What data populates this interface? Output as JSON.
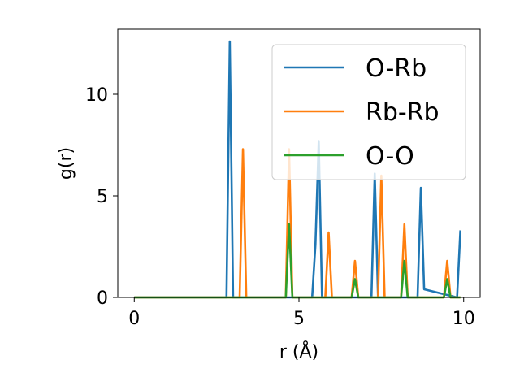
{
  "chart_data": {
    "type": "line",
    "title": "",
    "xlabel": "r (Å)",
    "ylabel": "g(r)",
    "xlim": [
      -0.5,
      10.5
    ],
    "ylim": [
      0,
      13.2
    ],
    "xticks": [
      0,
      5,
      10
    ],
    "yticks": [
      0,
      5,
      10
    ],
    "xtick_labels": [
      "0",
      "5",
      "10"
    ],
    "ytick_labels": [
      "0",
      "5",
      "10"
    ],
    "grid": false,
    "legend_position": "top-right",
    "series": [
      {
        "name": "O-Rb",
        "color": "#1f77b4",
        "x": [
          0,
          2.8,
          2.9,
          3.0,
          5.4,
          5.5,
          5.6,
          5.7,
          7.2,
          7.3,
          7.4,
          8.6,
          8.7,
          8.8,
          9.8,
          9.9
        ],
        "y": [
          0,
          0,
          12.6,
          0,
          0,
          2.6,
          7.7,
          0,
          0,
          6.1,
          0,
          0,
          5.4,
          0.4,
          0,
          3.3
        ]
      },
      {
        "name": "Rb-Rb",
        "color": "#ff7f0e",
        "x": [
          0,
          3.2,
          3.3,
          3.4,
          4.6,
          4.7,
          4.8,
          5.8,
          5.9,
          6.0,
          6.6,
          6.7,
          6.8,
          7.4,
          7.5,
          7.6,
          8.1,
          8.2,
          8.3,
          9.4,
          9.5,
          9.6,
          9.9
        ],
        "y": [
          0,
          0,
          7.3,
          0,
          0,
          7.3,
          0,
          0,
          3.2,
          0,
          0,
          1.8,
          0,
          0,
          6.0,
          0,
          0,
          3.6,
          0,
          0,
          1.8,
          0,
          0
        ]
      },
      {
        "name": "O-O",
        "color": "#2ca02c",
        "x": [
          0,
          4.6,
          4.7,
          4.8,
          6.6,
          6.7,
          6.8,
          8.1,
          8.2,
          8.3,
          9.4,
          9.5,
          9.6,
          9.9
        ],
        "y": [
          0,
          0,
          3.6,
          0,
          0,
          0.9,
          0,
          0,
          1.8,
          0,
          0,
          0.9,
          0,
          0
        ]
      }
    ]
  }
}
